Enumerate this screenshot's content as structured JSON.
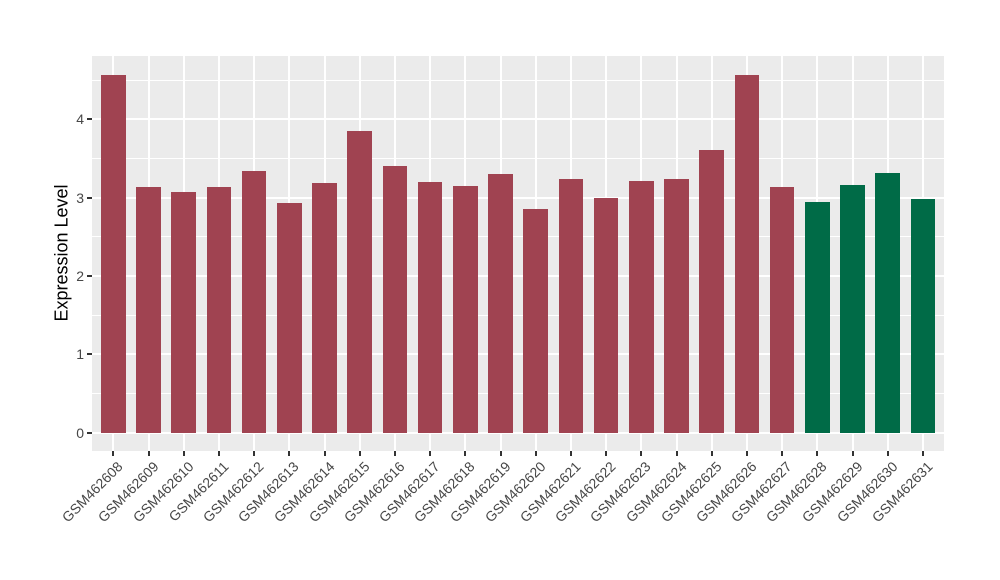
{
  "chart_data": {
    "type": "bar",
    "title": "",
    "xlabel": "",
    "ylabel": "Expression Level",
    "categories": [
      "GSM462608",
      "GSM462609",
      "GSM462610",
      "GSM462611",
      "GSM462612",
      "GSM462613",
      "GSM462614",
      "GSM462615",
      "GSM462616",
      "GSM462617",
      "GSM462618",
      "GSM462619",
      "GSM462620",
      "GSM462621",
      "GSM462622",
      "GSM462623",
      "GSM462624",
      "GSM462625",
      "GSM462626",
      "GSM462627",
      "GSM462628",
      "GSM462629",
      "GSM462630",
      "GSM462631"
    ],
    "values": [
      4.57,
      3.14,
      3.07,
      3.13,
      3.34,
      2.93,
      3.18,
      3.85,
      3.4,
      3.2,
      3.15,
      3.3,
      2.85,
      3.24,
      3.0,
      3.21,
      3.24,
      3.61,
      4.57,
      3.13,
      2.94,
      3.16,
      3.32,
      2.98
    ],
    "groups": [
      "red",
      "red",
      "red",
      "red",
      "red",
      "red",
      "red",
      "red",
      "red",
      "red",
      "red",
      "red",
      "red",
      "red",
      "red",
      "red",
      "red",
      "red",
      "red",
      "red",
      "green",
      "green",
      "green",
      "green"
    ],
    "palette": {
      "red": "#A04351",
      "green": "#006B47"
    },
    "yticks": [
      0,
      1,
      2,
      3,
      4
    ],
    "y_minor_ticks": [
      0.5,
      1.5,
      2.5,
      3.5,
      4.5
    ],
    "ylim": [
      -0.23,
      4.81
    ],
    "grid": true,
    "legend_position": "none",
    "panel_bg": "#EBEBEB",
    "grid_color": "#FFFFFF",
    "tick_label_color": "#474747",
    "axis_title_color": "#000000"
  }
}
